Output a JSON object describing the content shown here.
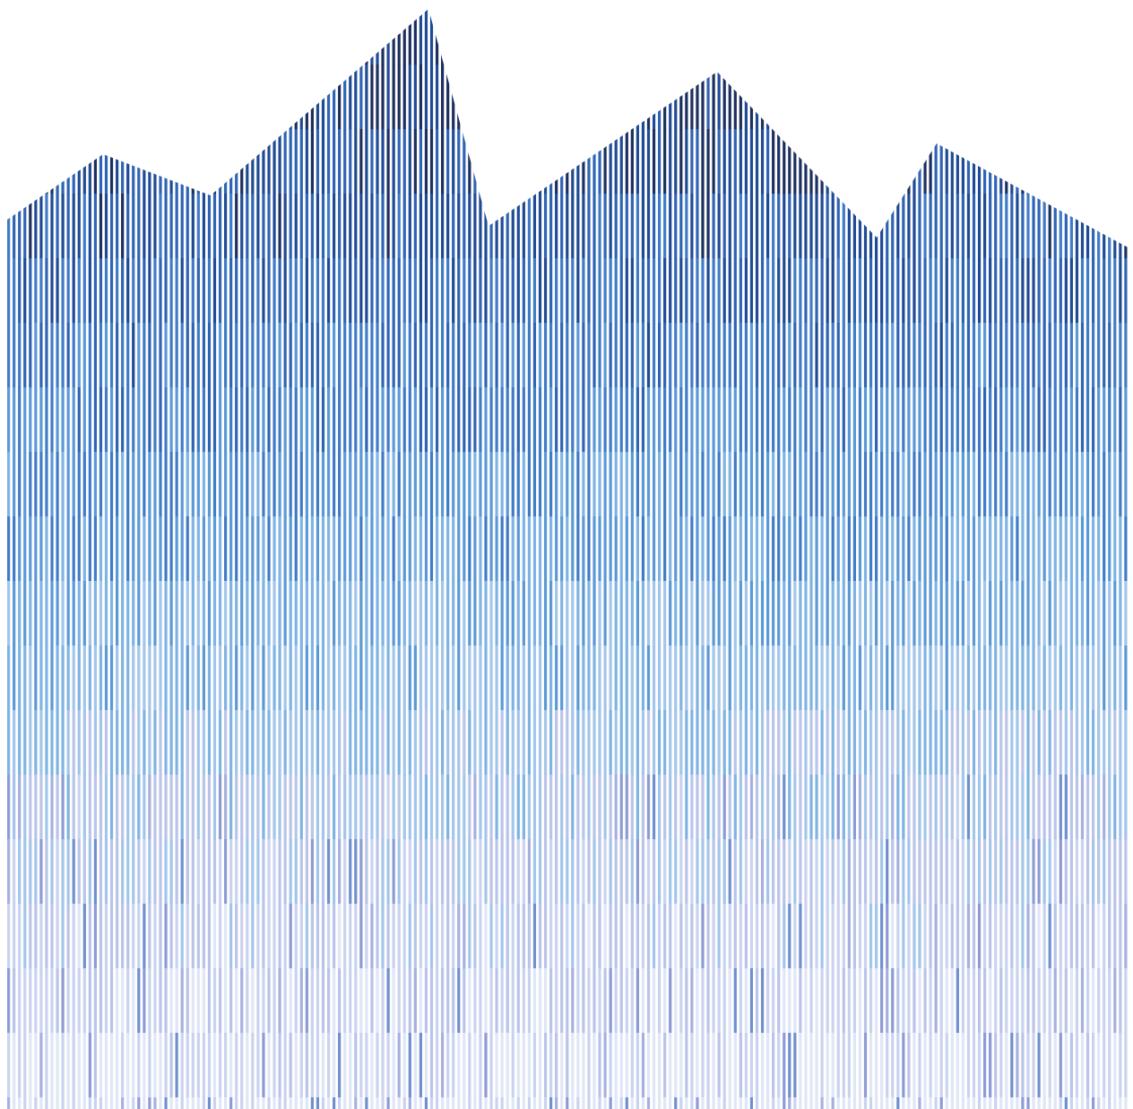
{
  "artwork": {
    "background_color": "#ffffff",
    "palette_top_to_bottom": [
      "#1c2f5e",
      "#1f4a94",
      "#2f63b3",
      "#3f7bc6",
      "#5a99d6",
      "#7fb3e3",
      "#a3c5ea",
      "#b9c4e8",
      "#c9d3ef",
      "#dfe6f6"
    ],
    "accent_colors": [
      "#6f8fce",
      "#8c9bd6",
      "#a6b0df"
    ]
  }
}
